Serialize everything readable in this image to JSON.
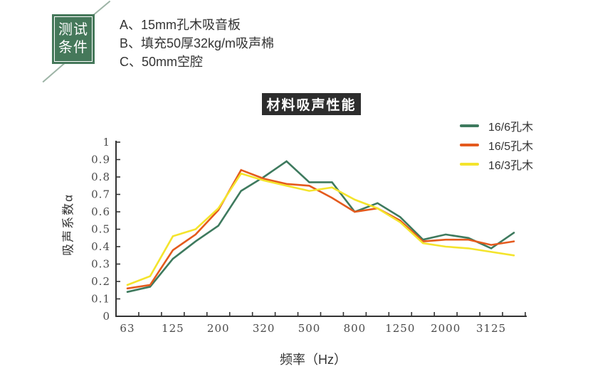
{
  "test_conditions": {
    "box_label_line1": "测试",
    "box_label_line2": "条件",
    "items": [
      "A、15mm孔木吸音板",
      "B、填充50厚32kg/m吸声棉",
      "C、50mm空腔"
    ]
  },
  "chart_data": {
    "type": "line",
    "title": "材料吸声性能",
    "xlabel": "频率（Hz）",
    "ylabel": "吸声系数α",
    "categories": [
      "63",
      "",
      "125",
      "",
      "200",
      "",
      "320",
      "",
      "500",
      "",
      "800",
      "",
      "1250",
      "",
      "2000",
      "",
      "3125",
      ""
    ],
    "x_tick_labels": [
      "63",
      "125",
      "200",
      "320",
      "500",
      "800",
      "1250",
      "2000",
      "3125"
    ],
    "y_ticks": [
      0,
      0.1,
      0.2,
      0.3,
      0.4,
      0.5,
      0.6,
      0.7,
      0.8,
      0.9,
      1
    ],
    "y_tick_labels": [
      "0",
      "0.1",
      "0.2",
      "0.3",
      "0.4",
      "0.5",
      "0.6",
      "0.7",
      "0.8",
      "0.9",
      "1"
    ],
    "ylim": [
      0,
      1
    ],
    "grid": false,
    "legend_position": "top-right",
    "series": [
      {
        "name": "16/6孔木",
        "color": "#3e7a5e",
        "values": [
          0.14,
          0.17,
          0.33,
          0.43,
          0.52,
          0.72,
          0.8,
          0.89,
          0.77,
          0.77,
          0.6,
          0.65,
          0.57,
          0.44,
          0.47,
          0.45,
          0.39,
          0.48
        ]
      },
      {
        "name": "16/5孔木",
        "color": "#e45a1d",
        "values": [
          0.16,
          0.18,
          0.38,
          0.47,
          0.61,
          0.84,
          0.79,
          0.76,
          0.75,
          0.68,
          0.6,
          0.62,
          0.55,
          0.43,
          0.44,
          0.44,
          0.41,
          0.43
        ]
      },
      {
        "name": "16/3孔木",
        "color": "#f4e42c",
        "values": [
          0.18,
          0.23,
          0.46,
          0.5,
          0.62,
          0.82,
          0.78,
          0.75,
          0.72,
          0.74,
          0.67,
          0.62,
          0.54,
          0.42,
          0.4,
          0.39,
          0.37,
          0.35
        ]
      }
    ]
  },
  "colors": {
    "condition_box_green": "#45785a",
    "title_badge_bg": "#2d2d2d",
    "axis": "#333333",
    "tick_label": "#4a4a4a",
    "diagonal_line": "#9db4a6"
  }
}
